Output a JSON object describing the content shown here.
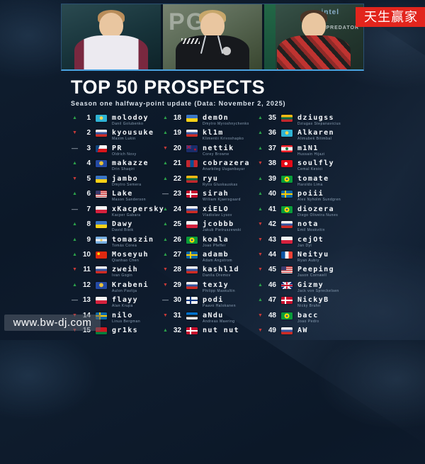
{
  "header": {
    "title": "TOP 50 PROSPECTS",
    "subtitle": "Season one halfway-point update (Data: November 2, 2025)",
    "photos": [
      {
        "label": "player in white-maroon jersey"
      },
      {
        "label": "player in black FURIA jersey",
        "backdrop": "PG"
      },
      {
        "label": "player in red-black jersey",
        "backdrop_intel": "intel",
        "backdrop_predator": "PREDATOR"
      }
    ]
  },
  "trend_glyphs": {
    "up": "▲",
    "down": "▼",
    "same": "—"
  },
  "colors": {
    "up": "#2ca14a",
    "down": "#c93a38",
    "neutral": "#cfd8e2"
  },
  "list": {
    "columns": [
      {
        "rows": [
          {
            "rank": 1,
            "trend": "up",
            "flag": "kz",
            "name": "molodoy",
            "sub": "Danil Golubenko"
          },
          {
            "rank": 2,
            "trend": "down",
            "flag": "ru",
            "name": "kyousuke",
            "sub": "Maxim Lukin"
          },
          {
            "rank": 3,
            "trend": "same",
            "flag": "cz",
            "name": "PR",
            "sub": "Oldrich Novy"
          },
          {
            "rank": 4,
            "trend": "up",
            "flag": "xk",
            "name": "makazze",
            "sub": "Drin Shaqiri"
          },
          {
            "rank": 5,
            "trend": "down",
            "flag": "ua",
            "name": "jambo",
            "sub": "Dmytro Semera"
          },
          {
            "rank": 6,
            "trend": "up",
            "flag": "us",
            "name": "Lake",
            "sub": "Mason Sanderson"
          },
          {
            "rank": 7,
            "trend": "same",
            "flag": "pl",
            "name": "xKacpersky",
            "sub": "Kacper Gabara"
          },
          {
            "rank": 8,
            "trend": "up",
            "flag": "ua",
            "name": "Dawy",
            "sub": "David Bibik"
          },
          {
            "rank": 9,
            "trend": "up",
            "flag": "ar",
            "name": "tomaszin",
            "sub": "Tomás Corea"
          },
          {
            "rank": 10,
            "trend": "up",
            "flag": "cn",
            "name": "Moseyuh",
            "sub": "Qianhao Chen"
          },
          {
            "rank": 11,
            "trend": "down",
            "flag": "ru",
            "name": "zweih",
            "sub": "Ivan Gogin"
          },
          {
            "rank": 12,
            "trend": "up",
            "flag": "xk",
            "name": "Krabeni",
            "sub": "Aulon Pavlija"
          },
          {
            "rank": 13,
            "trend": "same",
            "flag": "pl",
            "name": "flayy",
            "sub": "Alan Krupa"
          },
          {
            "rank": 14,
            "trend": "down",
            "flag": "se",
            "name": "nilo",
            "sub": "Linus Bergman"
          },
          {
            "rank": 15,
            "trend": "down",
            "flag": "by",
            "name": "gr1ks",
            "sub": ""
          }
        ]
      },
      {
        "rows": [
          {
            "rank": 18,
            "trend": "up",
            "flag": "ua",
            "name": "demOn",
            "sub": "Dmytro Myroshnychenko"
          },
          {
            "rank": 19,
            "trend": "up",
            "flag": "ru",
            "name": "kl1m",
            "sub": "Klimentii Krivoshapko"
          },
          {
            "rank": 20,
            "trend": "down",
            "flag": "nz",
            "name": "nettik",
            "sub": "Corey Browne"
          },
          {
            "rank": 21,
            "trend": "up",
            "flag": "mn",
            "name": "cobrazera",
            "sub": "Anarbileg Uuganbayar"
          },
          {
            "rank": 22,
            "trend": "up",
            "flag": "lt",
            "name": "ryu",
            "sub": "Rytis Gluskauskas"
          },
          {
            "rank": 23,
            "trend": "same",
            "flag": "dk",
            "name": "sirah",
            "sub": "William Kjaersgaard"
          },
          {
            "rank": 24,
            "trend": "up",
            "flag": "ru",
            "name": "xiELO",
            "sub": "Vladislav Lysov"
          },
          {
            "rank": 25,
            "trend": "up",
            "flag": "pl",
            "name": "jcobbb",
            "sub": "Jakub Pietruszewski"
          },
          {
            "rank": 26,
            "trend": "up",
            "flag": "br",
            "name": "koala",
            "sub": "Joao Pfeffer"
          },
          {
            "rank": 27,
            "trend": "up",
            "flag": "se",
            "name": "adamb",
            "sub": "Adam Angstrom"
          },
          {
            "rank": 28,
            "trend": "down",
            "flag": "ru",
            "name": "kashl1d",
            "sub": "Danila Dremov"
          },
          {
            "rank": 29,
            "trend": "down",
            "flag": "ru",
            "name": "tex1y",
            "sub": "Philipp Maskultin"
          },
          {
            "rank": 30,
            "trend": "same",
            "flag": "fi",
            "name": "podi",
            "sub": "Paavo Halokanen"
          },
          {
            "rank": 31,
            "trend": "down",
            "flag": "ee",
            "name": "aNdu",
            "sub": "Andreas Maering"
          },
          {
            "rank": 32,
            "trend": "up",
            "flag": "dk",
            "name": "nut nut",
            "sub": ""
          }
        ]
      },
      {
        "rows": [
          {
            "rank": 35,
            "trend": "up",
            "flag": "lt",
            "name": "dziugss",
            "sub": "Dziugas Stepanavicius"
          },
          {
            "rank": 36,
            "trend": "up",
            "flag": "kz",
            "name": "Alkaren",
            "sub": "Alimubek Bitimbal"
          },
          {
            "rank": 37,
            "trend": "up",
            "flag": "lb",
            "name": "m1N1",
            "sub": "Hussain Hijazi"
          },
          {
            "rank": 38,
            "trend": "down",
            "flag": "tr",
            "name": "soulfly",
            "sub": "Cemal Kesici"
          },
          {
            "rank": 39,
            "trend": "up",
            "flag": "br",
            "name": "tomate",
            "sub": "Haroldo Lima"
          },
          {
            "rank": 40,
            "trend": "up",
            "flag": "se",
            "name": "poiii",
            "sub": "Alex Nyholm Sundgren"
          },
          {
            "rank": 41,
            "trend": "up",
            "flag": "br",
            "name": "diozera",
            "sub": "Diego Oliveira Nunes"
          },
          {
            "rank": 42,
            "trend": "down",
            "flag": "ru",
            "name": "nota",
            "sub": "Emil Moskvitin"
          },
          {
            "rank": 43,
            "trend": "down",
            "flag": "pl",
            "name": "cejOt",
            "sub": "Jan Dyl"
          },
          {
            "rank": 44,
            "trend": "down",
            "flag": "fr",
            "name": "Neityu",
            "sub": "Ryan Aubry"
          },
          {
            "rank": 45,
            "trend": "down",
            "flag": "us",
            "name": "Peeping",
            "sub": "Jason Cornwell"
          },
          {
            "rank": 46,
            "trend": "up",
            "flag": "gb",
            "name": "Gizmy",
            "sub": "Jack von Spreckelsen"
          },
          {
            "rank": 47,
            "trend": "up",
            "flag": "dk",
            "name": "NickyB",
            "sub": "Nicky Bruhn"
          },
          {
            "rank": 48,
            "trend": "down",
            "flag": "br",
            "name": "bacc",
            "sub": "Joao Pedro"
          },
          {
            "rank": 49,
            "trend": "down",
            "flag": "ru",
            "name": "AW",
            "sub": ""
          }
        ]
      }
    ]
  },
  "watermarks": {
    "top_right": "天生赢家",
    "bottom_left": "www.bw-dj.com"
  }
}
